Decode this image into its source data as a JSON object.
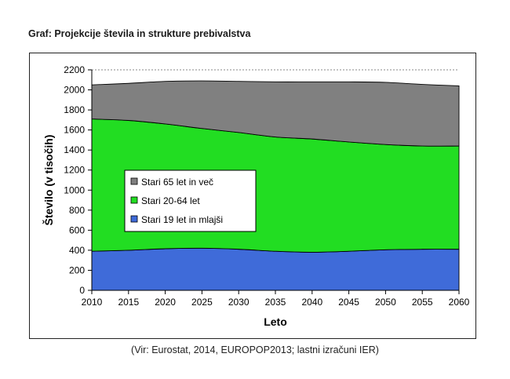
{
  "header": {
    "title": "Graf: Projekcije števila in strukture prebivalstva"
  },
  "footer": {
    "source": "(Vir: Eurostat, 2014, EUROPOP2013; lastni izračuni IER)"
  },
  "chart_data": {
    "type": "area",
    "stacked": true,
    "title": "",
    "xlabel": "Leto",
    "ylabel": "Število (v tisočih)",
    "ylim": [
      0,
      2200
    ],
    "yticks": [
      0,
      200,
      400,
      600,
      800,
      1000,
      1200,
      1400,
      1600,
      1800,
      2000,
      2200
    ],
    "xlim": [
      2010,
      2060
    ],
    "xticks": [
      2010,
      2015,
      2020,
      2025,
      2030,
      2035,
      2040,
      2045,
      2050,
      2055,
      2060
    ],
    "grid": "horizontal-dashed",
    "legend_position": "left-center",
    "x": [
      2010,
      2015,
      2020,
      2025,
      2030,
      2035,
      2040,
      2045,
      2050,
      2055,
      2060
    ],
    "series": [
      {
        "name": "Stari 19 let in mlajši",
        "color": "#3f6bd9",
        "values": [
          390,
          400,
          415,
          420,
          410,
          390,
          380,
          390,
          405,
          410,
          410
        ]
      },
      {
        "name": "Stari 20-64 let",
        "color": "#22dd22",
        "values": [
          1320,
          1295,
          1245,
          1195,
          1165,
          1140,
          1130,
          1090,
          1050,
          1030,
          1030
        ]
      },
      {
        "name": "Stari 65 let in več",
        "color": "#808080",
        "values": [
          340,
          370,
          425,
          475,
          510,
          550,
          570,
          600,
          620,
          615,
          600
        ]
      }
    ]
  }
}
